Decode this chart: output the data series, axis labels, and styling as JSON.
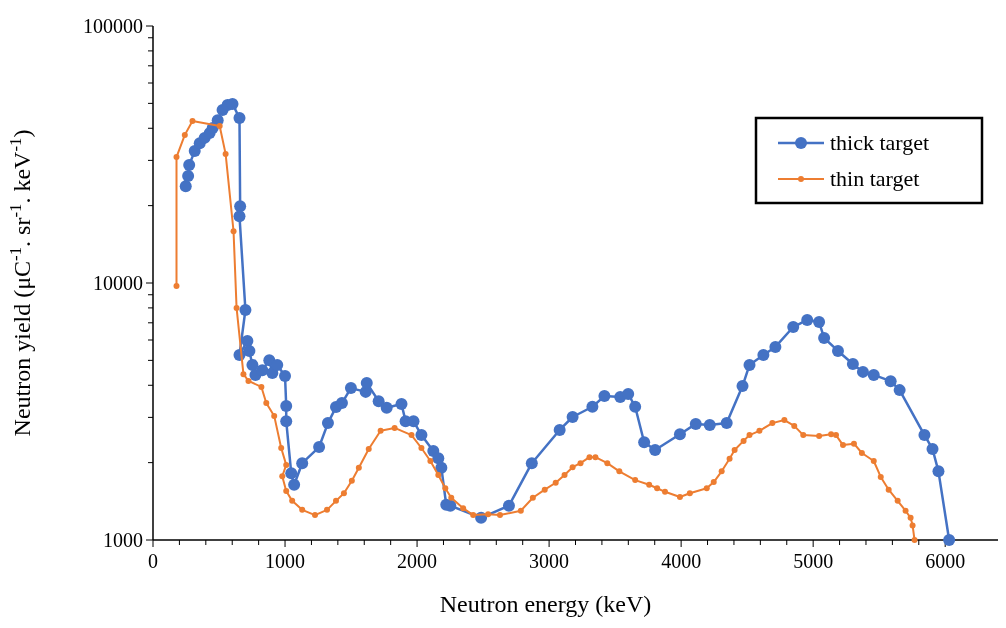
{
  "chart_data": {
    "type": "line",
    "xlabel": "Neutron energy (keV)",
    "ylabel": "Neutron yield (μC$^{-1}$. sr$^{-1}$. keV$^{-1}$)",
    "log": "y",
    "xlim": [
      0,
      6400
    ],
    "xticks": [
      0,
      1000,
      2000,
      3000,
      4000,
      5000,
      6000
    ],
    "ylim": [
      1000,
      100000
    ],
    "yticks": [
      1000,
      10000,
      100000
    ],
    "grid": false,
    "legend": "top right",
    "marker": "circle",
    "line_style": "solid",
    "series": [
      {
        "name": "thick target",
        "color": "#4472c4",
        "x": [
          248,
          266,
          274,
          316,
          354,
          391,
          429,
          452,
          490,
          527,
          565,
          602,
          655,
          660,
          655,
          700,
          655,
          715,
          730,
          753,
          776,
          828,
          881,
          904,
          941,
          1000,
          1009,
          1009,
          1047,
          1069,
          1130,
          1258,
          1325,
          1386,
          1431,
          1499,
          1611,
          1619,
          1709,
          1770,
          1882,
          1913,
          1973,
          2033,
          2123,
          2161,
          2184,
          2221,
          2252,
          2485,
          2696,
          2869,
          3080,
          3178,
          3328,
          3419,
          3539,
          3599,
          3652,
          3720,
          3803,
          3991,
          4111,
          4217,
          4345,
          4465,
          4518,
          4623,
          4714,
          4849,
          4955,
          5045,
          5083,
          5188,
          5301,
          5377,
          5459,
          5587,
          5655,
          5843,
          5904,
          5949,
          6030
        ],
        "values": [
          23800,
          26100,
          28800,
          32600,
          35000,
          36700,
          38300,
          40100,
          43000,
          47100,
          49300,
          49700,
          43900,
          19900,
          18200,
          7850,
          5250,
          5950,
          5440,
          4800,
          4390,
          4580,
          5010,
          4460,
          4800,
          4350,
          3320,
          2900,
          1820,
          1640,
          1990,
          2300,
          2850,
          3290,
          3410,
          3900,
          3770,
          4080,
          3470,
          3270,
          3380,
          2900,
          2900,
          2560,
          2220,
          2080,
          1910,
          1370,
          1360,
          1220,
          1360,
          1990,
          2680,
          3010,
          3300,
          3630,
          3600,
          3700,
          3300,
          2400,
          2240,
          2580,
          2830,
          2800,
          2850,
          3970,
          4800,
          5250,
          5640,
          6740,
          7180,
          7050,
          6110,
          5440,
          4840,
          4510,
          4390,
          4150,
          3830,
          2560,
          2260,
          1850,
          1000
        ]
      },
      {
        "name": "thin target",
        "color": "#ed7d31",
        "x": [
          178,
          178,
          241,
          299,
          505,
          550,
          610,
          633,
          685,
          723,
          821,
          858,
          918,
          971,
          1009,
          979,
          1009,
          1054,
          1130,
          1227,
          1318,
          1386,
          1446,
          1506,
          1559,
          1634,
          1724,
          1830,
          1958,
          2033,
          2101,
          2161,
          2214,
          2259,
          2349,
          2425,
          2538,
          2628,
          2786,
          2877,
          2967,
          3050,
          3117,
          3178,
          3238,
          3306,
          3351,
          3441,
          3532,
          3652,
          3758,
          3818,
          3878,
          3991,
          4066,
          4194,
          4247,
          4307,
          4367,
          4405,
          4473,
          4518,
          4593,
          4691,
          4782,
          4857,
          4925,
          5045,
          5136,
          5173,
          5226,
          5309,
          5369,
          5459,
          5512,
          5572,
          5640,
          5700,
          5738,
          5753,
          5768
        ],
        "values": [
          9730,
          30900,
          37700,
          42700,
          40800,
          31800,
          15900,
          8000,
          4420,
          4160,
          3940,
          3410,
          3040,
          2280,
          1960,
          1770,
          1550,
          1420,
          1310,
          1250,
          1310,
          1420,
          1520,
          1700,
          1910,
          2260,
          2660,
          2730,
          2560,
          2280,
          2030,
          1790,
          1590,
          1460,
          1330,
          1250,
          1260,
          1250,
          1300,
          1460,
          1570,
          1670,
          1790,
          1920,
          1990,
          2100,
          2100,
          1990,
          1850,
          1710,
          1640,
          1590,
          1540,
          1470,
          1520,
          1590,
          1680,
          1850,
          2070,
          2240,
          2430,
          2560,
          2660,
          2850,
          2930,
          2780,
          2560,
          2540,
          2580,
          2560,
          2340,
          2370,
          2180,
          2030,
          1760,
          1570,
          1420,
          1300,
          1220,
          1140,
          1000
        ]
      }
    ]
  }
}
